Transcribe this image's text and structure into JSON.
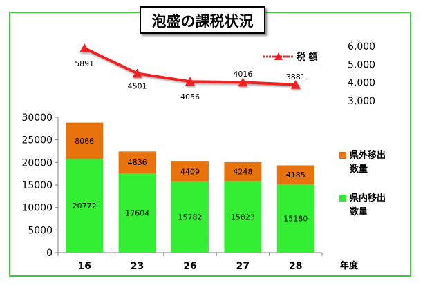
{
  "chart_data": {
    "title": "泡盛の課税状況",
    "xlabel": "年度",
    "categories": [
      "16",
      "23",
      "26",
      "27",
      "28"
    ],
    "bar_chart": {
      "type": "bar",
      "stacked": true,
      "ylim": [
        0,
        30000
      ],
      "yticks": [
        "30000",
        "25000",
        "20000",
        "15000",
        "10000",
        "5000",
        "0"
      ],
      "series": [
        {
          "name": "県内移出数量",
          "name_lines": [
            "県内移出",
            "数量"
          ],
          "color": "#33ee33",
          "values": [
            20772,
            17604,
            15782,
            15823,
            15180
          ]
        },
        {
          "name": "県外移出数量",
          "name_lines": [
            "県外移出",
            "数量"
          ],
          "color": "#e8720c",
          "values": [
            8066,
            4836,
            4409,
            4248,
            4185
          ]
        }
      ]
    },
    "line_chart": {
      "type": "line",
      "ylim": [
        3000,
        6000
      ],
      "yticks": [
        "6,000",
        "5,000",
        "4,000",
        "3,000"
      ],
      "legend": "top-right",
      "series": [
        {
          "name": "税 額",
          "color": "#ee2222",
          "values": [
            5891,
            4501,
            4056,
            4016,
            3881
          ]
        }
      ]
    }
  }
}
